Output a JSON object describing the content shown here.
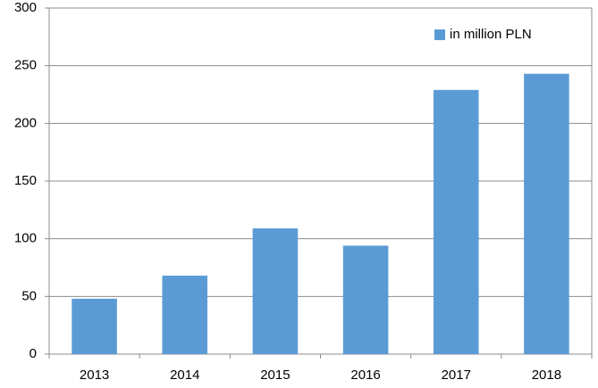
{
  "chart_data": {
    "type": "bar",
    "categories": [
      "2013",
      "2014",
      "2015",
      "2016",
      "2017",
      "2018"
    ],
    "series": [
      {
        "name": "in million PLN",
        "color": "#5b9bd5",
        "values": [
          48,
          68,
          109,
          94,
          229,
          243
        ]
      }
    ],
    "ylim": [
      0,
      300
    ],
    "yticks": [
      0,
      50,
      100,
      150,
      200,
      250,
      300
    ],
    "grid": true,
    "legend": "top-right"
  }
}
